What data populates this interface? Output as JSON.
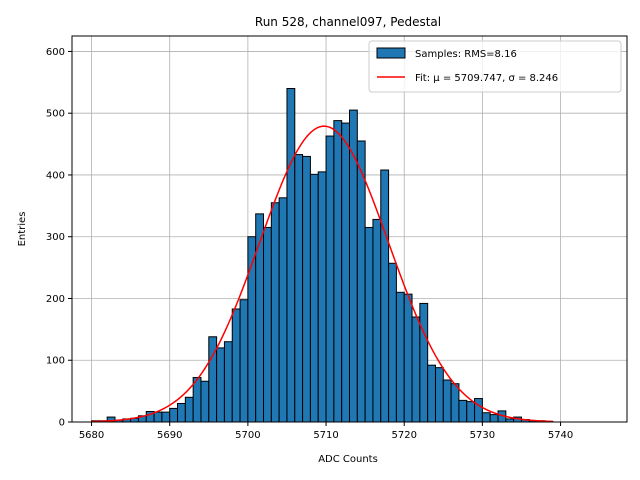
{
  "chart_data": {
    "type": "bar",
    "title": "Run 528, channel097, Pedestal",
    "xlabel": "ADC Counts",
    "ylabel": "Entries",
    "xlim": [
      5677.5,
      5748.5
    ],
    "ylim": [
      0,
      625
    ],
    "grid": true,
    "xticks": [
      5680,
      5690,
      5700,
      5710,
      5720,
      5730,
      5740
    ],
    "yticks": [
      0,
      100,
      200,
      300,
      400,
      500,
      600
    ],
    "bin_start": 5680,
    "bin_width": 1,
    "values": [
      2,
      2,
      8,
      3,
      5,
      6,
      10,
      17,
      16,
      16,
      22,
      30,
      40,
      72,
      66,
      138,
      120,
      130,
      183,
      198,
      300,
      337,
      315,
      355,
      363,
      540,
      433,
      430,
      401,
      405,
      463,
      488,
      484,
      505,
      455,
      315,
      328,
      408,
      257,
      210,
      207,
      170,
      192,
      92,
      88,
      68,
      62,
      35,
      33,
      38,
      15,
      12,
      18,
      5,
      8,
      4,
      2,
      2,
      1,
      0,
      0,
      0,
      0,
      0,
      0
    ],
    "fit": {
      "mu": 5709.747,
      "sigma": 8.246,
      "amplitude": 479,
      "x_from": 5680,
      "x_to": 5739
    },
    "legend": {
      "location": "upper right",
      "entries": [
        {
          "label": "Samples: RMS=8.16",
          "kind": "bar"
        },
        {
          "label": "Fit: μ = 5709.747, σ = 8.246",
          "kind": "line"
        }
      ]
    },
    "colors": {
      "bar_fill": "#1f77b4",
      "bar_edge": "#000000",
      "fit_line": "#ff0000",
      "grid": "#b0b0b0"
    }
  }
}
